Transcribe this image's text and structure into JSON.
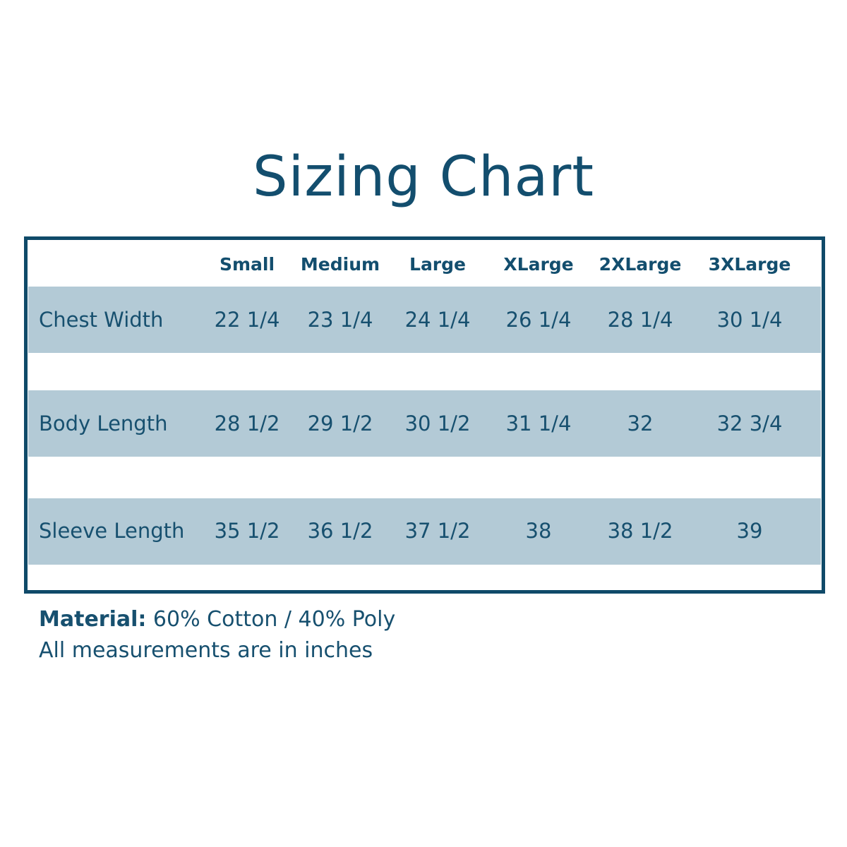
{
  "title": "Sizing Chart",
  "colors": {
    "text": "#17506f",
    "border": "#0f4a69",
    "band": "#b3cad6"
  },
  "table": {
    "columns": [
      "Small",
      "Medium",
      "Large",
      "XLarge",
      "2XLarge",
      "3XLarge"
    ],
    "rows": [
      {
        "label": "Chest Width",
        "values": [
          "22 1/4",
          "23 1/4",
          "24 1/4",
          "26 1/4",
          "28 1/4",
          "30 1/4"
        ]
      },
      {
        "label": "Body Length",
        "values": [
          "28 1/2",
          "29 1/2",
          "30 1/2",
          "31 1/4",
          "32",
          "32 3/4"
        ]
      },
      {
        "label": "Sleeve Length",
        "values": [
          "35 1/2",
          "36 1/2",
          "37 1/2",
          "38",
          "38 1/2",
          "39"
        ]
      }
    ]
  },
  "footer": {
    "material_label": "Material:",
    "material_value": " 60% Cotton / 40% Poly",
    "note": "All measurements are in inches"
  }
}
